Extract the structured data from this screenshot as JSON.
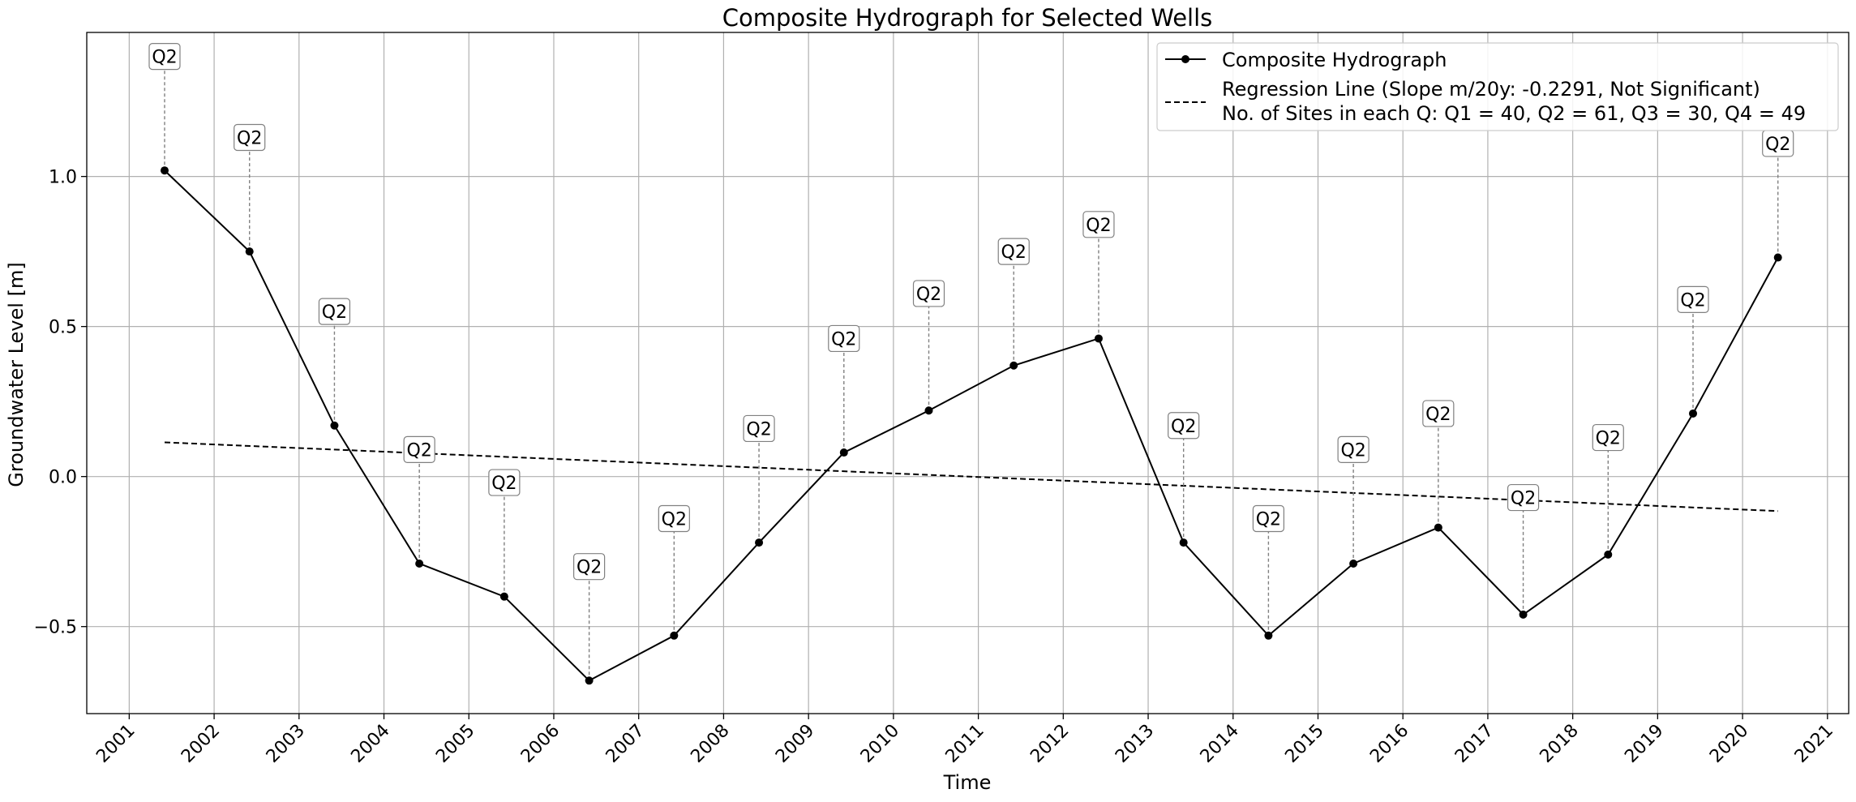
{
  "chart_data": {
    "type": "line",
    "title": "Composite Hydrograph for Selected Wells",
    "xlabel": "Time",
    "ylabel": "Groundwater Level [m]",
    "x_ticks": [
      "2001",
      "2002",
      "2003",
      "2004",
      "2005",
      "2006",
      "2007",
      "2008",
      "2009",
      "2010",
      "2011",
      "2012",
      "2013",
      "2014",
      "2015",
      "2016",
      "2017",
      "2018",
      "2019",
      "2020",
      "2021"
    ],
    "y_ticks": [
      -0.5,
      0.0,
      0.5,
      1.0
    ],
    "y_tick_labels": [
      "−0.5",
      "0.0",
      "0.5",
      "1.0"
    ],
    "xlim": [
      "2000-07",
      "2021-04"
    ],
    "ylim": [
      -0.79,
      1.48
    ],
    "grid": true,
    "legend_position": "top-right",
    "series": [
      {
        "name": "Composite Hydrograph",
        "color": "#000000",
        "style": "solid-with-markers",
        "x": [
          "2001-06",
          "2002-06",
          "2003-06",
          "2004-06",
          "2005-06",
          "2006-06",
          "2007-06",
          "2008-06",
          "2009-06",
          "2010-06",
          "2011-06",
          "2012-06",
          "2013-06",
          "2014-06",
          "2015-06",
          "2016-06",
          "2017-06",
          "2018-06",
          "2019-06",
          "2020-06"
        ],
        "values": [
          1.02,
          0.75,
          0.17,
          -0.29,
          -0.4,
          -0.68,
          -0.53,
          -0.22,
          0.08,
          0.22,
          0.37,
          0.46,
          -0.22,
          -0.53,
          -0.29,
          -0.17,
          -0.46,
          -0.26,
          0.21,
          0.73
        ]
      },
      {
        "name": "Regression Line (Slope m/20y: -0.2291, Not Significant)",
        "color": "#000000",
        "style": "dashed",
        "x": [
          "2001-06",
          "2020-06"
        ],
        "values": [
          0.114,
          -0.115
        ]
      }
    ],
    "legend_extra_text": "No. of Sites in each Q: Q1 = 40, Q2 = 61, Q3 = 30, Q4 = 49",
    "annotations": [
      {
        "label": "Q2",
        "y": 1.4
      },
      {
        "label": "Q2",
        "y": 1.13
      },
      {
        "label": "Q2",
        "y": 0.55
      },
      {
        "label": "Q2",
        "y": 0.09
      },
      {
        "label": "Q2",
        "y": -0.02
      },
      {
        "label": "Q2",
        "y": -0.3
      },
      {
        "label": "Q2",
        "y": -0.14
      },
      {
        "label": "Q2",
        "y": 0.16
      },
      {
        "label": "Q2",
        "y": 0.46
      },
      {
        "label": "Q2",
        "y": 0.61
      },
      {
        "label": "Q2",
        "y": 0.75
      },
      {
        "label": "Q2",
        "y": 0.84
      },
      {
        "label": "Q2",
        "y": 0.17
      },
      {
        "label": "Q2",
        "y": -0.14
      },
      {
        "label": "Q2",
        "y": 0.09
      },
      {
        "label": "Q2",
        "y": 0.21
      },
      {
        "label": "Q2",
        "y": -0.07
      },
      {
        "label": "Q2",
        "y": 0.13
      },
      {
        "label": "Q2",
        "y": 0.59
      },
      {
        "label": "Q2",
        "y": 1.11
      }
    ]
  }
}
